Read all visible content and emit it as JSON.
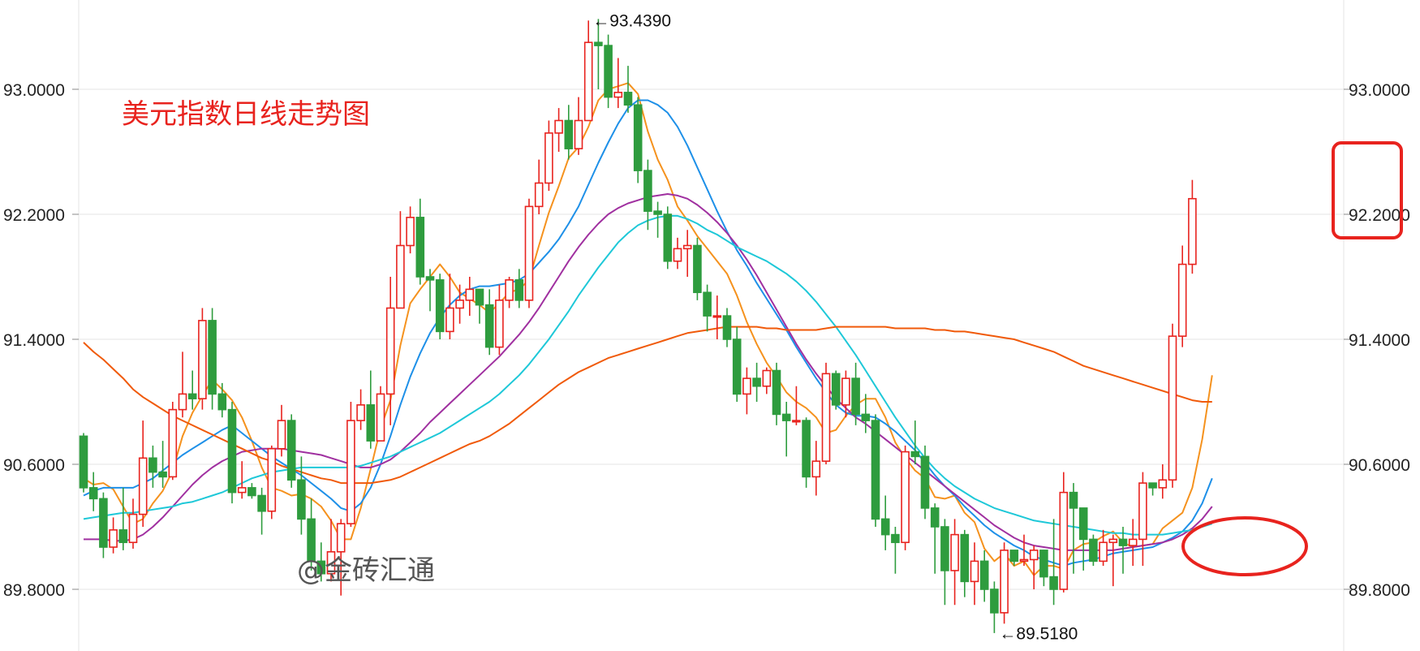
{
  "chart_data": {
    "type": "candlestick",
    "title": "美元指数日线走势图",
    "watermark": "@金砖汇通",
    "ylim": [
      89.35,
      93.55
    ],
    "yticks": [
      "93.0000",
      "92.2000",
      "91.4000",
      "90.6000",
      "89.8000"
    ],
    "ytick_values": [
      93.0,
      92.2,
      91.4,
      90.6,
      89.8
    ],
    "grid": true,
    "colors": {
      "up": "#e8231e",
      "down": "#2e9c3e",
      "ma5": "#f5921e",
      "ma10": "#1e90e8",
      "ma20": "#a030a0",
      "ma30": "#1ec8d8",
      "ma60": "#f05a0a",
      "highlight": "#e8231e"
    },
    "annotations": [
      {
        "text": "←93.4390",
        "value": 93.439
      },
      {
        "text": "←89.5180",
        "value": 89.518
      }
    ],
    "candles": [
      [
        90.78,
        90.45,
        90.8,
        90.42
      ],
      [
        90.45,
        90.38,
        90.55,
        90.3
      ],
      [
        90.38,
        90.07,
        90.42,
        90.0
      ],
      [
        90.07,
        90.18,
        90.26,
        90.03
      ],
      [
        90.18,
        90.1,
        90.45,
        90.05
      ],
      [
        90.1,
        90.28,
        90.38,
        90.06
      ],
      [
        90.28,
        90.64,
        90.88,
        90.2
      ],
      [
        90.64,
        90.55,
        90.72,
        90.45
      ],
      [
        90.55,
        90.52,
        90.75,
        90.45
      ],
      [
        90.52,
        90.95,
        91.0,
        90.5
      ],
      [
        90.95,
        91.05,
        91.32,
        90.9
      ],
      [
        91.05,
        91.02,
        91.2,
        90.95
      ],
      [
        91.02,
        91.52,
        91.6,
        90.95
      ],
      [
        91.52,
        91.05,
        91.6,
        90.95
      ],
      [
        91.05,
        90.95,
        91.12,
        90.9
      ],
      [
        90.95,
        90.42,
        91.0,
        90.35
      ],
      [
        90.42,
        90.45,
        90.62,
        90.38
      ],
      [
        90.45,
        90.4,
        90.48,
        90.38
      ],
      [
        90.4,
        90.3,
        90.45,
        90.15
      ],
      [
        90.3,
        90.7,
        90.72,
        90.25
      ],
      [
        90.7,
        90.88,
        90.98,
        90.65
      ],
      [
        90.88,
        90.5,
        90.92,
        90.45
      ],
      [
        90.5,
        90.25,
        90.65,
        90.15
      ],
      [
        90.25,
        89.98,
        90.38,
        89.92
      ],
      [
        89.98,
        89.9,
        90.1,
        89.85
      ],
      [
        89.9,
        90.04,
        90.25,
        89.85
      ],
      [
        90.04,
        90.22,
        90.25,
        89.76
      ],
      [
        90.22,
        90.88,
        91.0,
        90.2
      ],
      [
        90.88,
        90.98,
        91.08,
        90.82
      ],
      [
        90.98,
        90.75,
        91.2,
        90.7
      ],
      [
        90.75,
        91.05,
        91.1,
        90.8
      ],
      [
        91.05,
        91.6,
        91.8,
        90.85
      ],
      [
        91.6,
        92.0,
        92.22,
        91.95
      ],
      [
        92.0,
        92.18,
        92.25,
        91.95
      ],
      [
        92.18,
        91.8,
        92.3,
        91.75
      ],
      [
        91.8,
        91.78,
        91.85,
        91.58
      ],
      [
        91.78,
        91.45,
        91.82,
        91.4
      ],
      [
        91.45,
        91.6,
        91.82,
        91.4
      ],
      [
        91.6,
        91.65,
        91.75,
        91.5
      ],
      [
        91.65,
        91.72,
        91.8,
        91.55
      ],
      [
        91.72,
        91.62,
        91.7,
        91.5
      ],
      [
        91.62,
        91.35,
        91.72,
        91.3
      ],
      [
        91.35,
        91.65,
        91.75,
        91.3
      ],
      [
        91.65,
        91.78,
        91.8,
        91.6
      ],
      [
        91.78,
        91.65,
        91.85,
        91.6
      ],
      [
        91.65,
        92.25,
        92.3,
        91.6
      ],
      [
        92.25,
        92.4,
        92.55,
        92.2
      ],
      [
        92.4,
        92.72,
        92.8,
        92.35
      ],
      [
        92.72,
        92.8,
        92.88,
        92.6
      ],
      [
        92.8,
        92.62,
        92.9,
        92.55
      ],
      [
        92.62,
        92.8,
        92.95,
        92.58
      ],
      [
        92.8,
        93.3,
        93.44,
        92.8
      ],
      [
        93.3,
        93.28,
        93.45,
        93.0
      ],
      [
        93.28,
        92.95,
        93.35,
        92.88
      ],
      [
        92.95,
        92.98,
        93.2,
        92.88
      ],
      [
        92.98,
        92.9,
        93.15,
        92.85
      ],
      [
        92.9,
        92.48,
        92.95,
        92.4
      ],
      [
        92.48,
        92.22,
        92.55,
        92.1
      ],
      [
        92.22,
        92.2,
        92.28,
        92.05
      ],
      [
        92.2,
        91.9,
        92.25,
        91.85
      ],
      [
        91.9,
        91.98,
        92.05,
        91.85
      ],
      [
        91.98,
        92.0,
        92.1,
        91.8
      ],
      [
        92.0,
        91.7,
        92.05,
        91.65
      ],
      [
        91.7,
        91.55,
        91.75,
        91.45
      ],
      [
        91.55,
        91.55,
        91.68,
        91.4
      ],
      [
        91.55,
        91.4,
        91.6,
        91.35
      ],
      [
        91.4,
        91.05,
        91.48,
        91.0
      ],
      [
        91.05,
        91.15,
        91.22,
        90.92
      ],
      [
        91.15,
        91.1,
        91.25,
        91.0
      ],
      [
        91.1,
        91.2,
        91.22,
        91.05
      ],
      [
        91.2,
        90.92,
        91.25,
        90.85
      ],
      [
        90.92,
        90.88,
        91.0,
        90.65
      ],
      [
        90.88,
        90.88,
        91.1,
        90.85
      ],
      [
        90.88,
        90.52,
        90.9,
        90.45
      ],
      [
        90.52,
        90.62,
        90.75,
        90.4
      ],
      [
        90.62,
        91.18,
        91.25,
        90.6
      ],
      [
        91.18,
        90.98,
        91.2,
        90.95
      ],
      [
        90.98,
        91.15,
        91.2,
        90.9
      ],
      [
        91.15,
        90.92,
        91.25,
        90.85
      ],
      [
        90.92,
        90.88,
        91.05,
        90.8
      ],
      [
        90.88,
        90.25,
        90.92,
        90.2
      ],
      [
        90.25,
        90.15,
        90.4,
        90.05
      ],
      [
        90.15,
        90.1,
        90.2,
        89.9
      ],
      [
        90.1,
        90.68,
        90.72,
        90.05
      ],
      [
        90.68,
        90.65,
        90.88,
        90.6
      ],
      [
        90.65,
        90.32,
        90.72,
        90.25
      ],
      [
        90.32,
        90.2,
        90.35,
        89.9
      ],
      [
        90.2,
        89.92,
        90.25,
        89.7
      ],
      [
        89.92,
        90.15,
        90.25,
        89.7
      ],
      [
        90.15,
        89.85,
        90.18,
        89.75
      ],
      [
        89.85,
        89.98,
        90.1,
        89.7
      ],
      [
        89.98,
        89.8,
        90.05,
        89.72
      ],
      [
        89.8,
        89.65,
        89.85,
        89.52
      ],
      [
        89.65,
        90.05,
        90.1,
        89.58
      ],
      [
        90.05,
        89.98,
        90.05,
        89.95
      ],
      [
        89.98,
        89.99,
        90.15,
        89.95
      ],
      [
        89.99,
        90.05,
        90.08,
        89.8
      ],
      [
        90.05,
        89.88,
        90.05,
        89.82
      ],
      [
        89.88,
        89.8,
        90.25,
        89.7
      ],
      [
        89.8,
        90.42,
        90.55,
        89.78
      ],
      [
        90.42,
        90.32,
        90.48,
        89.9
      ],
      [
        90.32,
        90.12,
        90.2,
        89.92
      ],
      [
        90.12,
        89.98,
        90.15,
        89.95
      ],
      [
        89.98,
        90.1,
        90.18,
        89.95
      ],
      [
        90.1,
        90.12,
        90.15,
        89.82
      ],
      [
        90.12,
        90.08,
        90.2,
        89.9
      ],
      [
        90.08,
        90.12,
        90.25,
        89.95
      ],
      [
        90.12,
        90.48,
        90.55,
        89.95
      ],
      [
        90.48,
        90.45,
        90.48,
        90.4
      ],
      [
        90.45,
        90.5,
        90.6,
        90.38
      ],
      [
        90.5,
        91.42,
        91.5,
        90.45
      ],
      [
        91.42,
        91.88,
        92.0,
        91.35
      ],
      [
        91.88,
        92.3,
        92.42,
        91.82
      ]
    ],
    "series": [
      {
        "name": "MA5",
        "color": "#f5921e",
        "values": [
          90.51,
          90.47,
          90.48,
          90.44,
          90.33,
          90.22,
          90.25,
          90.35,
          90.43,
          90.56,
          90.78,
          90.93,
          91.04,
          91.14,
          91.08,
          91.01,
          90.9,
          90.75,
          90.58,
          90.45,
          90.43,
          90.4,
          90.41,
          90.38,
          90.33,
          90.24,
          90.12,
          90.12,
          90.32,
          90.57,
          90.83,
          91.01,
          91.36,
          91.63,
          91.72,
          91.8,
          91.88,
          91.8,
          91.7,
          91.66,
          91.62,
          91.57,
          91.63,
          91.7,
          91.72,
          91.78,
          92.0,
          92.21,
          92.38,
          92.56,
          92.63,
          92.76,
          92.93,
          93.0,
          93.02,
          93.04,
          92.97,
          92.73,
          92.55,
          92.42,
          92.25,
          92.16,
          92.06,
          91.98,
          91.9,
          91.82,
          91.68,
          91.51,
          91.37,
          91.25,
          91.16,
          91.06,
          91.0,
          90.96,
          90.9,
          90.8,
          90.82,
          90.91,
          90.98,
          91.02,
          91.02,
          90.9,
          90.74,
          90.64,
          90.56,
          90.51,
          90.39,
          90.38,
          90.4,
          90.29,
          90.23,
          90.06,
          89.98,
          90.03,
          89.95,
          89.98,
          89.89,
          89.95,
          89.95,
          89.93,
          90.05,
          90.09,
          90.1,
          90.14,
          90.17,
          90.1,
          90.07,
          90.08,
          90.09,
          90.19,
          90.24,
          90.29,
          90.45,
          90.76,
          91.17
        ]
      },
      {
        "name": "MA10",
        "color": "#1e90e8",
        "values": [
          90.4,
          90.43,
          90.45,
          90.45,
          90.45,
          90.45,
          90.48,
          90.51,
          90.56,
          90.61,
          90.66,
          90.7,
          90.74,
          90.78,
          90.82,
          90.85,
          90.8,
          90.75,
          90.7,
          90.65,
          90.61,
          90.57,
          90.53,
          90.48,
          90.43,
          90.38,
          90.32,
          90.3,
          90.35,
          90.45,
          90.6,
          90.78,
          90.98,
          91.16,
          91.31,
          91.44,
          91.54,
          91.62,
          91.68,
          91.72,
          91.74,
          91.74,
          91.75,
          91.76,
          91.78,
          91.82,
          91.89,
          91.96,
          92.04,
          92.14,
          92.25,
          92.39,
          92.53,
          92.66,
          92.78,
          92.88,
          92.93,
          92.93,
          92.9,
          92.85,
          92.76,
          92.64,
          92.5,
          92.36,
          92.22,
          92.09,
          91.97,
          91.87,
          91.76,
          91.66,
          91.56,
          91.46,
          91.35,
          91.25,
          91.15,
          91.06,
          90.98,
          90.93,
          90.91,
          90.91,
          90.9,
          90.86,
          90.81,
          90.75,
          90.69,
          90.61,
          90.53,
          90.46,
          90.4,
          90.33,
          90.27,
          90.21,
          90.16,
          90.12,
          90.08,
          90.05,
          90.01,
          89.99,
          89.97,
          89.95,
          89.97,
          89.98,
          89.99,
          90.01,
          90.03,
          90.04,
          90.05,
          90.06,
          90.07,
          90.1,
          90.13,
          90.17,
          90.24,
          90.35,
          90.51
        ]
      },
      {
        "name": "MA20",
        "color": "#a030a0",
        "values": [
          90.12,
          90.12,
          90.12,
          90.11,
          90.11,
          90.12,
          90.15,
          90.2,
          90.26,
          90.33,
          90.4,
          90.47,
          90.53,
          90.58,
          90.62,
          90.65,
          90.68,
          90.69,
          90.7,
          90.7,
          90.7,
          90.69,
          90.68,
          90.67,
          90.66,
          90.64,
          90.62,
          90.6,
          90.58,
          90.58,
          90.6,
          90.63,
          90.68,
          90.74,
          90.8,
          90.87,
          90.93,
          90.99,
          91.05,
          91.11,
          91.17,
          91.23,
          91.29,
          91.36,
          91.43,
          91.51,
          91.6,
          91.7,
          91.8,
          91.9,
          91.99,
          92.07,
          92.14,
          92.2,
          92.24,
          92.27,
          92.29,
          92.31,
          92.32,
          92.33,
          92.32,
          92.3,
          92.26,
          92.21,
          92.15,
          92.08,
          92.0,
          91.91,
          91.81,
          91.7,
          91.59,
          91.48,
          91.37,
          91.27,
          91.18,
          91.1,
          91.02,
          90.96,
          90.9,
          90.86,
          90.81,
          90.76,
          90.71,
          90.66,
          90.61,
          90.56,
          90.51,
          90.46,
          90.41,
          90.36,
          90.31,
          90.26,
          90.21,
          90.17,
          90.13,
          90.1,
          90.08,
          90.07,
          90.06,
          90.05,
          90.05,
          90.05,
          90.05,
          90.05,
          90.05,
          90.06,
          90.07,
          90.08,
          90.09,
          90.1,
          90.12,
          90.15,
          90.19,
          90.25,
          90.33
        ]
      },
      {
        "name": "MA30",
        "color": "#1ec8d8",
        "values": [
          90.25,
          90.26,
          90.27,
          90.28,
          90.29,
          90.29,
          90.3,
          90.31,
          90.32,
          90.33,
          90.35,
          90.36,
          90.38,
          90.4,
          90.42,
          90.45,
          90.48,
          90.51,
          90.53,
          90.55,
          90.56,
          90.57,
          90.58,
          90.58,
          90.58,
          90.58,
          90.58,
          90.58,
          90.59,
          90.61,
          90.63,
          90.65,
          90.68,
          90.71,
          90.74,
          90.77,
          90.8,
          90.84,
          90.88,
          90.92,
          90.96,
          91.0,
          91.05,
          91.11,
          91.17,
          91.24,
          91.32,
          91.4,
          91.49,
          91.58,
          91.68,
          91.77,
          91.86,
          91.94,
          92.02,
          92.08,
          92.13,
          92.16,
          92.18,
          92.19,
          92.19,
          92.17,
          92.14,
          92.1,
          92.07,
          92.03,
          91.99,
          91.96,
          91.93,
          91.9,
          91.86,
          91.82,
          91.77,
          91.71,
          91.64,
          91.56,
          91.48,
          91.39,
          91.3,
          91.2,
          91.1,
          91.0,
          90.9,
          90.81,
          90.72,
          90.64,
          90.57,
          90.51,
          90.46,
          90.42,
          90.38,
          90.35,
          90.32,
          90.3,
          90.28,
          90.26,
          90.24,
          90.23,
          90.22,
          90.21,
          90.2,
          90.19,
          90.18,
          90.17,
          90.16,
          90.16,
          90.15,
          90.15,
          90.15,
          90.15,
          90.16,
          90.17,
          90.18,
          90.2,
          90.22
        ]
      },
      {
        "name": "MA60",
        "color": "#f05a0a",
        "values": [
          91.38,
          91.32,
          91.27,
          91.21,
          91.15,
          91.08,
          91.03,
          90.99,
          90.95,
          90.91,
          90.88,
          90.85,
          90.82,
          90.79,
          90.76,
          90.73,
          90.7,
          90.67,
          90.64,
          90.62,
          90.59,
          90.57,
          90.55,
          90.53,
          90.51,
          90.5,
          90.48,
          90.48,
          90.48,
          90.48,
          90.49,
          90.5,
          90.52,
          90.55,
          90.58,
          90.61,
          90.64,
          90.67,
          90.7,
          90.73,
          90.75,
          90.78,
          90.82,
          90.86,
          90.91,
          90.96,
          91.01,
          91.06,
          91.11,
          91.15,
          91.19,
          91.22,
          91.25,
          91.28,
          91.3,
          91.32,
          91.34,
          91.36,
          91.38,
          91.4,
          91.42,
          91.44,
          91.45,
          91.46,
          91.47,
          91.48,
          91.48,
          91.48,
          91.48,
          91.47,
          91.47,
          91.46,
          91.46,
          91.46,
          91.46,
          91.47,
          91.48,
          91.48,
          91.48,
          91.48,
          91.48,
          91.48,
          91.47,
          91.47,
          91.47,
          91.47,
          91.46,
          91.46,
          91.45,
          91.45,
          91.44,
          91.43,
          91.42,
          91.41,
          91.4,
          91.38,
          91.36,
          91.34,
          91.32,
          91.29,
          91.26,
          91.23,
          91.21,
          91.19,
          91.17,
          91.15,
          91.13,
          91.11,
          91.09,
          91.07,
          91.05,
          91.03,
          91.01,
          91.0,
          91.0
        ]
      }
    ]
  }
}
